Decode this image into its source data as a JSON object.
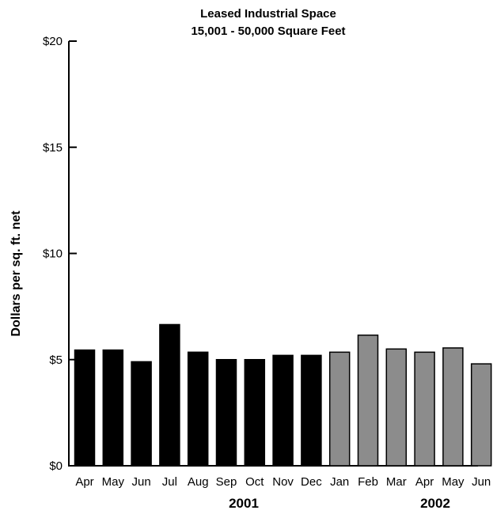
{
  "chart_data": {
    "type": "bar",
    "title": "Leased Industrial Space",
    "subtitle": "15,001 - 50,000 Square Feet",
    "ylabel": "Dollars per sq. ft. net",
    "xlabel": "",
    "ylim": [
      0,
      20
    ],
    "yticks": [
      "$0",
      "$5",
      "$10",
      "$15",
      "$20"
    ],
    "ytick_values": [
      0,
      5,
      10,
      15,
      20
    ],
    "categories": [
      "Apr",
      "May",
      "Jun",
      "Jul",
      "Aug",
      "Sep",
      "Oct",
      "Nov",
      "Dec",
      "Jan",
      "Feb",
      "Mar",
      "Apr",
      "May",
      "Jun"
    ],
    "values": [
      5.45,
      5.45,
      4.9,
      6.65,
      5.35,
      5.0,
      5.0,
      5.2,
      5.2,
      5.35,
      6.15,
      5.5,
      5.35,
      5.55,
      4.8
    ],
    "year_groups": [
      {
        "label": "2001",
        "start": 0,
        "end": 8,
        "color": "#000000"
      },
      {
        "label": "2002",
        "start": 9,
        "end": 14,
        "color": "#8c8c8c"
      }
    ],
    "grid": false,
    "legend": "none"
  }
}
